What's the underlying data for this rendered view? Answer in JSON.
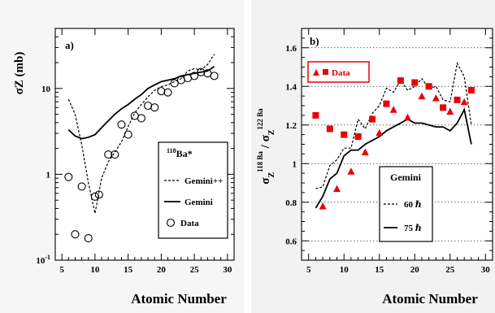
{
  "chart_data": [
    {
      "panel": "a)",
      "type": "line",
      "ylabel": "σZ (mb)",
      "xlabel": "Atomic Number",
      "yscale": "log",
      "xlim": [
        4,
        31
      ],
      "ylim": [
        0.1,
        50
      ],
      "x_ticks": [
        5,
        10,
        15,
        20,
        25,
        30
      ],
      "y_ticks": [
        {
          "value": 0.1,
          "label": "10-1"
        },
        {
          "value": 1,
          "label": "1"
        },
        {
          "value": 10,
          "label": "10"
        }
      ],
      "legend": {
        "title": "118Ba*",
        "entries": [
          {
            "label": "Gemini++",
            "style": "dashed"
          },
          {
            "label": "Gemini",
            "style": "solid"
          },
          {
            "label": "Data",
            "style": "open-circle"
          }
        ]
      },
      "series": [
        {
          "name": "Gemini++",
          "style": "dashed",
          "x": [
            6,
            7,
            8,
            9,
            10,
            11,
            12,
            13,
            14,
            15,
            16,
            17,
            18,
            19,
            20,
            21,
            22,
            23,
            24,
            25,
            26,
            27,
            28
          ],
          "y": [
            7.5,
            5,
            2.2,
            0.8,
            0.35,
            0.9,
            1.4,
            1.8,
            2.4,
            3.6,
            5.2,
            6.5,
            8,
            9.5,
            10.5,
            11,
            12,
            13,
            16,
            17,
            16.5,
            19,
            25
          ]
        },
        {
          "name": "Gemini",
          "style": "solid",
          "x": [
            6,
            7,
            8,
            9,
            10,
            11,
            12,
            13,
            14,
            15,
            16,
            17,
            18,
            19,
            20,
            21,
            22,
            23,
            24,
            25,
            26,
            27,
            28
          ],
          "y": [
            3.3,
            2.8,
            2.6,
            2.7,
            2.9,
            3.5,
            4.2,
            5,
            5.8,
            6.5,
            7.5,
            8.5,
            10,
            11,
            12,
            12.5,
            13,
            14,
            14.5,
            15,
            15.5,
            16,
            18
          ]
        },
        {
          "name": "Data",
          "style": "open-circle",
          "x": [
            6,
            7,
            8,
            9,
            10,
            10.6,
            12,
            13,
            14,
            15,
            16,
            17,
            18,
            19,
            20,
            21,
            22,
            23,
            24,
            25,
            26,
            27,
            28
          ],
          "y": [
            0.93,
            0.2,
            0.72,
            0.18,
            0.55,
            0.58,
            1.7,
            1.7,
            3.8,
            2.9,
            4.8,
            4.5,
            6.3,
            6,
            9.3,
            9,
            11.5,
            12.5,
            13.2,
            14,
            15.5,
            15,
            14
          ]
        }
      ]
    },
    {
      "panel": "b)",
      "type": "line",
      "ylabel_main": "σ",
      "ylabel_sub1": "Z",
      "ylabel_sup1": "118 Ba",
      "ylabel_sep": " / σ",
      "ylabel_sub2": "Z",
      "ylabel_sup2": "122 Ba",
      "xlabel": "Atomic Number",
      "xlim": [
        4,
        31
      ],
      "ylim": [
        0.5,
        1.7
      ],
      "grid": "horizontal dotted",
      "x_ticks": [
        5,
        10,
        15,
        20,
        25,
        30
      ],
      "y_ticks": [
        {
          "value": 0.6,
          "label": "0.6"
        },
        {
          "value": 0.8,
          "label": "0.8"
        },
        {
          "value": 1.0,
          "label": "1"
        },
        {
          "value": 1.2,
          "label": "1.2"
        },
        {
          "value": 1.4,
          "label": "1.4"
        },
        {
          "value": 1.6,
          "label": "1.6"
        }
      ],
      "legend_data": {
        "label": "Data"
      },
      "legend_gemini": {
        "title": "Gemini",
        "entries": [
          {
            "label": "60 ℏ",
            "style": "dashed"
          },
          {
            "label": "75 ℏ",
            "style": "solid"
          }
        ]
      },
      "series": [
        {
          "name": "60 ℏ",
          "style": "dashed",
          "x": [
            6,
            7,
            8,
            9,
            10,
            11,
            12,
            13,
            14,
            15,
            16,
            17,
            18,
            19,
            20,
            21,
            22,
            23,
            24,
            25,
            26,
            27,
            28
          ],
          "y": [
            0.87,
            0.88,
            0.99,
            1.02,
            1.08,
            1.08,
            1.23,
            1.18,
            1.26,
            1.3,
            1.39,
            1.37,
            1.43,
            1.38,
            1.4,
            1.44,
            1.39,
            1.4,
            1.33,
            1.32,
            1.52,
            1.45,
            1.2
          ]
        },
        {
          "name": "75 ℏ",
          "style": "solid",
          "x": [
            6,
            7,
            8,
            9,
            10,
            11,
            12,
            13,
            14,
            15,
            16,
            17,
            18,
            19,
            20,
            21,
            22,
            23,
            24,
            25,
            26,
            27,
            28
          ],
          "y": [
            0.77,
            0.83,
            0.92,
            0.95,
            1.04,
            1.07,
            1.07,
            1.1,
            1.12,
            1.14,
            1.17,
            1.19,
            1.21,
            1.23,
            1.21,
            1.21,
            1.2,
            1.19,
            1.19,
            1.17,
            1.21,
            1.28,
            1.1
          ]
        },
        {
          "name": "Data",
          "style": "filled-triangle-square",
          "x": [
            6,
            7,
            8,
            9,
            10,
            11,
            12,
            13,
            14,
            15,
            16,
            17,
            18,
            19,
            20,
            21,
            22,
            23,
            24,
            25,
            26,
            27,
            28
          ],
          "y": [
            1.25,
            0.78,
            1.18,
            0.87,
            1.15,
            0.96,
            1.14,
            1.06,
            1.23,
            1.16,
            1.31,
            1.28,
            1.43,
            1.24,
            1.42,
            1.35,
            1.4,
            1.34,
            1.29,
            1.27,
            1.33,
            1.32,
            1.38
          ],
          "markers": [
            "square",
            "triangle",
            "square",
            "triangle",
            "square",
            "triangle",
            "square",
            "triangle",
            "square",
            "triangle",
            "square",
            "triangle",
            "square",
            "triangle",
            "square",
            "triangle",
            "square",
            "triangle",
            "square",
            "triangle",
            "square",
            "triangle",
            "square"
          ]
        }
      ]
    }
  ],
  "colors": {
    "data_b": "#e8000b",
    "line": "#000000",
    "grid": "#333333"
  }
}
